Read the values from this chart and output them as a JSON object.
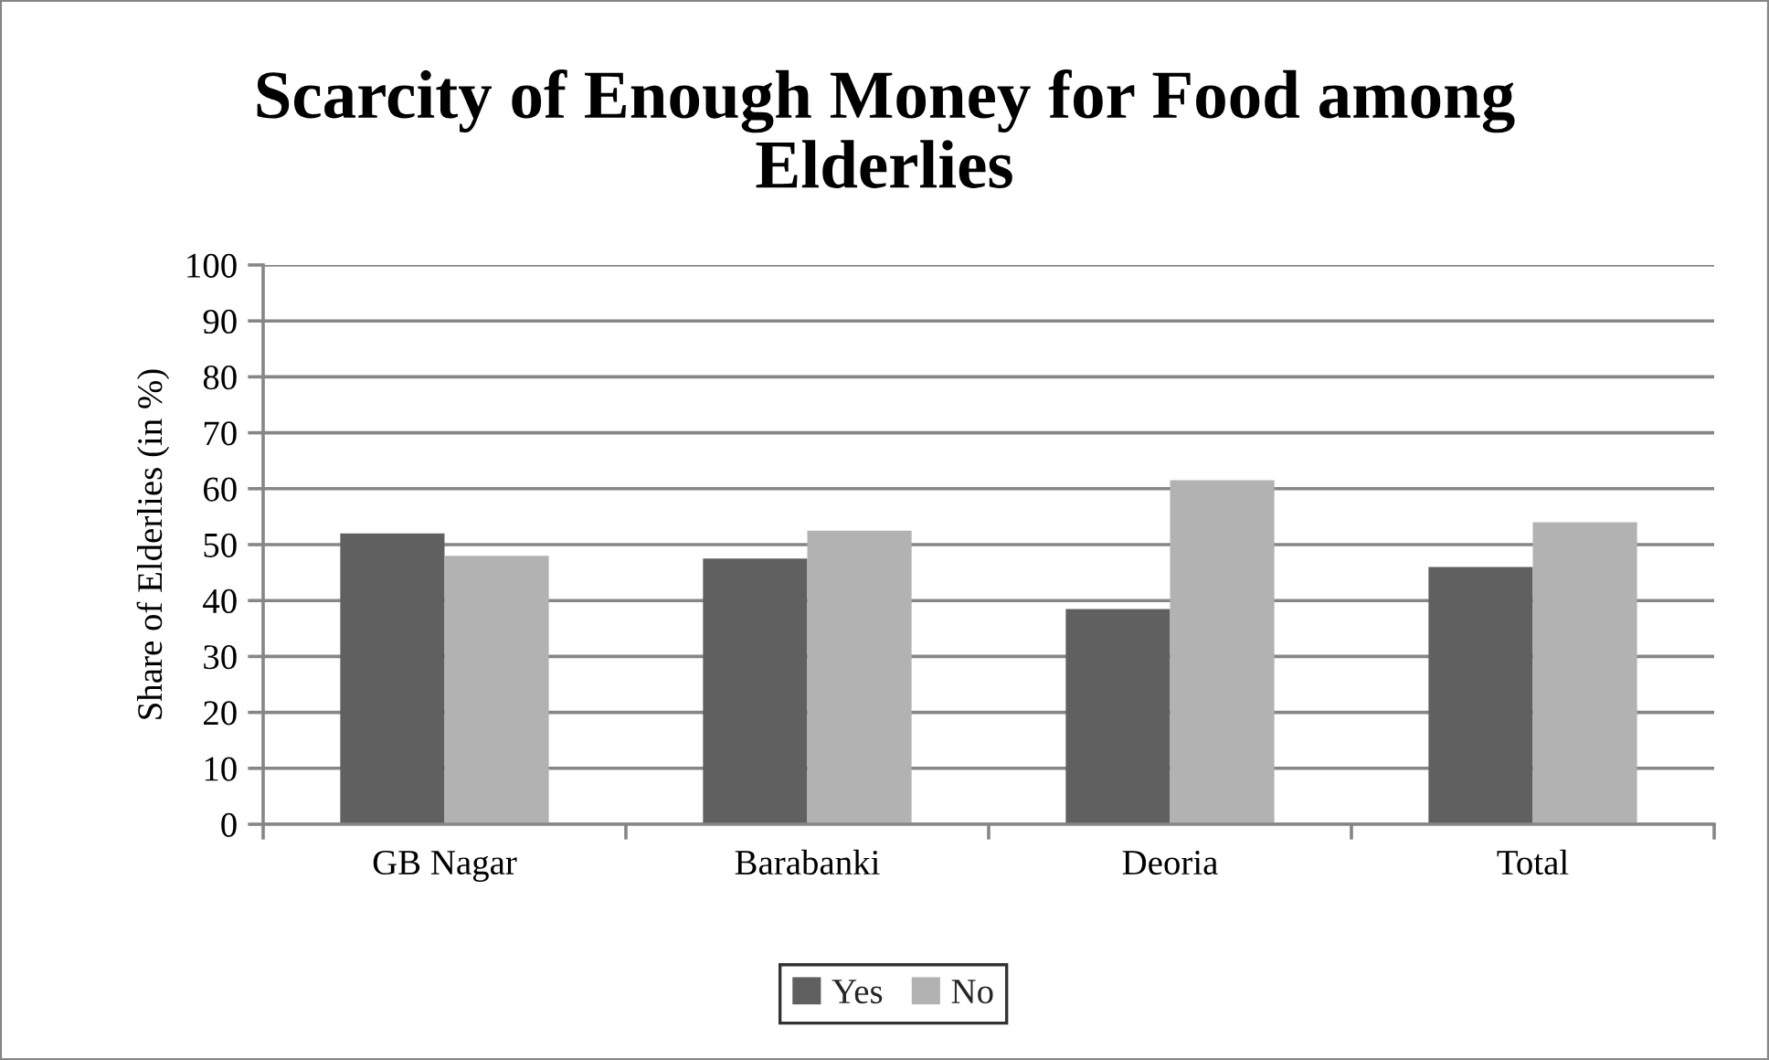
{
  "chart_data": {
    "type": "bar",
    "title": "Scarcity of Enough Money for Food among Elderlies",
    "ylabel": "Share of Elderlies (in %)",
    "categories": [
      "GB Nagar",
      "Barabanki",
      "Deoria",
      "Total"
    ],
    "series": [
      {
        "name": "Yes",
        "color": "#606060",
        "values": [
          52,
          47.5,
          38.5,
          46
        ]
      },
      {
        "name": "No",
        "color": "#b2b2b2",
        "values": [
          48,
          52.5,
          61.5,
          54
        ]
      }
    ],
    "ylim": [
      0,
      100
    ],
    "yticks": [
      0,
      10,
      20,
      30,
      40,
      50,
      60,
      70,
      80,
      90,
      100
    ],
    "grid": "y",
    "legend": "bottom"
  }
}
